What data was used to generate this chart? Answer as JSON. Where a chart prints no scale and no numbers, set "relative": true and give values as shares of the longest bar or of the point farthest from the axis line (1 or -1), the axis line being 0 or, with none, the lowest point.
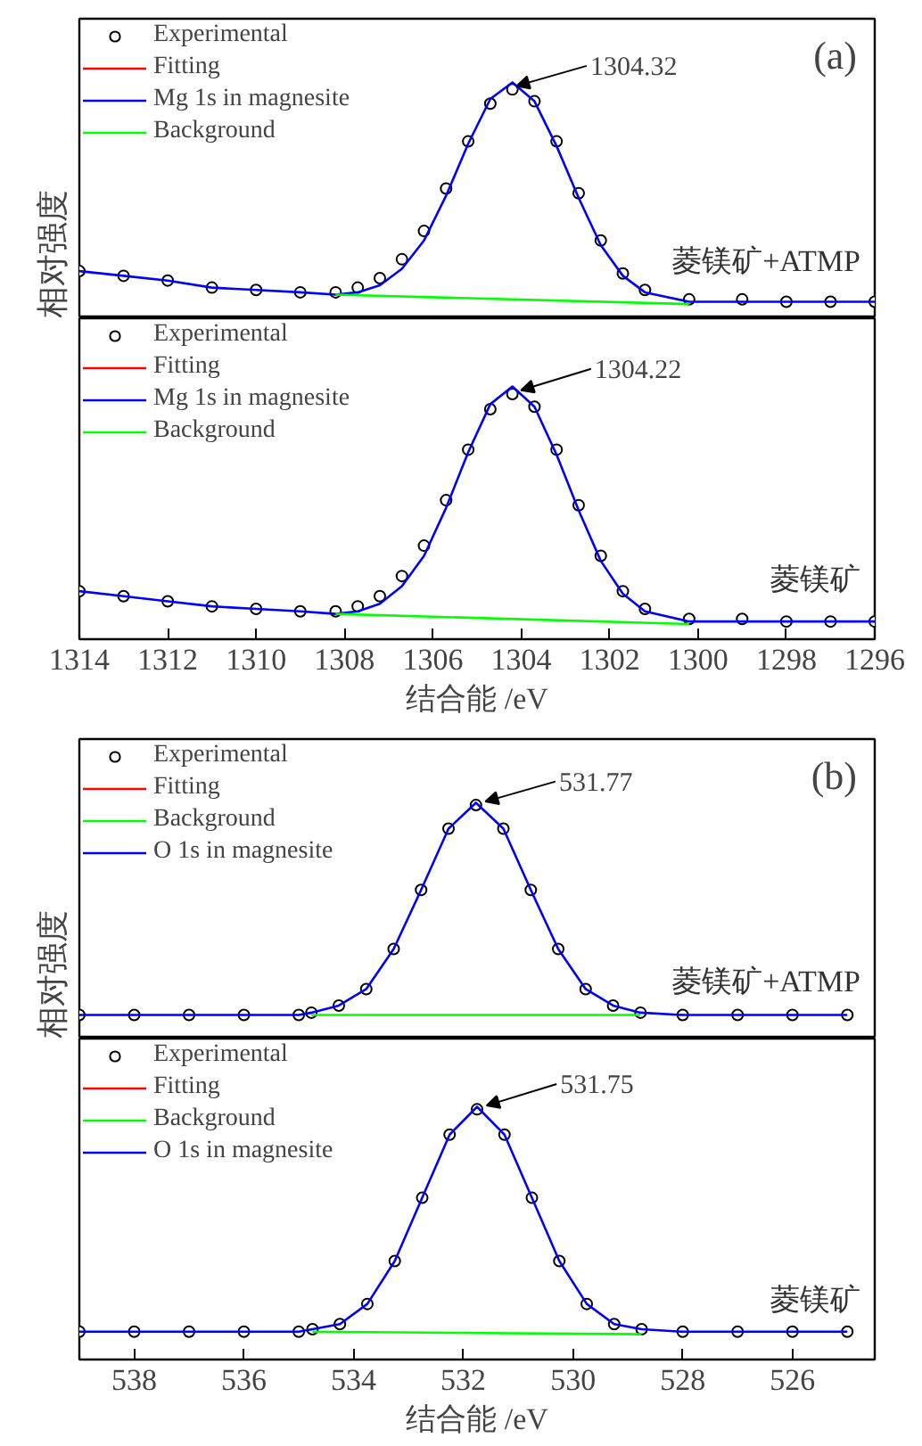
{
  "chart_data": [
    {
      "type": "line",
      "relative": true,
      "ylabel": "相对强度",
      "xlim": [
        1314,
        1296
      ],
      "xticks": [
        1314,
        1312,
        1310,
        1308,
        1306,
        1304,
        1302,
        1300,
        1298,
        1296
      ],
      "tick_labels": false,
      "legend": "top left",
      "grid": false,
      "annotations": [
        {
          "text": "1304.32",
          "x": 1304.32,
          "y": 0.97
        },
        "(a)",
        "菱镁矿+ATMP"
      ],
      "x": [
        1314,
        1313,
        1312,
        1311,
        1310,
        1309,
        1308.2,
        1307.7,
        1307.2,
        1306.7,
        1306.2,
        1305.7,
        1305.2,
        1304.7,
        1304.2,
        1303.7,
        1303.2,
        1302.7,
        1302.2,
        1301.7,
        1301.2,
        1300.2,
        1299,
        1298,
        1297,
        1296
      ],
      "series": [
        {
          "name": "Experimental",
          "type": "scatter",
          "marker": "circle",
          "color": "#000000",
          "values": [
            0.2,
            0.18,
            0.16,
            0.13,
            0.12,
            0.11,
            0.11,
            0.13,
            0.17,
            0.25,
            0.37,
            0.55,
            0.75,
            0.91,
            0.97,
            0.92,
            0.75,
            0.53,
            0.33,
            0.19,
            0.12,
            0.08,
            0.08,
            0.07,
            0.07,
            0.07
          ]
        },
        {
          "name": "Fitting",
          "color": "#ff0000",
          "values": [
            null,
            null,
            null,
            null,
            null,
            null,
            null,
            null,
            null,
            null,
            null,
            null,
            null,
            null,
            null,
            null,
            null,
            null,
            null,
            null,
            null,
            null,
            null,
            null,
            null,
            null
          ]
        },
        {
          "name": "Mg 1s in magnesite",
          "color": "#0000ff",
          "values": [
            0.2,
            0.18,
            0.16,
            0.13,
            0.12,
            0.11,
            0.1,
            0.11,
            0.14,
            0.21,
            0.33,
            0.52,
            0.74,
            0.93,
            1.0,
            0.92,
            0.73,
            0.51,
            0.31,
            0.18,
            0.11,
            0.07,
            0.07,
            0.07,
            0.07,
            0.07
          ]
        },
        {
          "name": "Background",
          "color": "#00ff00",
          "x": [
            1308.2,
            1300.2
          ],
          "values": [
            0.1,
            0.06
          ]
        }
      ]
    },
    {
      "type": "line",
      "relative": true,
      "xlabel": "结合能 /eV",
      "xlim": [
        1314,
        1296
      ],
      "xticks": [
        1314,
        1312,
        1310,
        1308,
        1306,
        1304,
        1302,
        1300,
        1298,
        1296
      ],
      "tick_labels": "x",
      "legend": "top left",
      "grid": false,
      "annotations": [
        {
          "text": "1304.22",
          "x": 1304.22,
          "y": 0.97
        },
        "菱镁矿"
      ],
      "x": [
        1314,
        1313,
        1312,
        1311,
        1310,
        1309,
        1308.2,
        1307.7,
        1307.2,
        1306.7,
        1306.2,
        1305.7,
        1305.2,
        1304.7,
        1304.2,
        1303.7,
        1303.2,
        1302.7,
        1302.2,
        1301.7,
        1301.2,
        1300.2,
        1299,
        1298,
        1297,
        1296
      ],
      "series": [
        {
          "name": "Experimental",
          "type": "scatter",
          "marker": "circle",
          "color": "#000000",
          "values": [
            0.19,
            0.17,
            0.15,
            0.13,
            0.12,
            0.11,
            0.11,
            0.13,
            0.17,
            0.25,
            0.37,
            0.55,
            0.75,
            0.91,
            0.97,
            0.92,
            0.75,
            0.53,
            0.33,
            0.19,
            0.12,
            0.08,
            0.08,
            0.07,
            0.07,
            0.07
          ]
        },
        {
          "name": "Fitting",
          "color": "#ff0000",
          "values": [
            null,
            null,
            null,
            null,
            null,
            null,
            null,
            null,
            null,
            null,
            null,
            null,
            null,
            null,
            null,
            null,
            null,
            null,
            null,
            null,
            null,
            null,
            null,
            null,
            null,
            null
          ]
        },
        {
          "name": "Mg 1s in magnesite",
          "color": "#0000ff",
          "values": [
            0.19,
            0.17,
            0.15,
            0.13,
            0.12,
            0.11,
            0.1,
            0.11,
            0.14,
            0.21,
            0.33,
            0.52,
            0.74,
            0.93,
            1.0,
            0.92,
            0.73,
            0.51,
            0.31,
            0.18,
            0.11,
            0.07,
            0.07,
            0.07,
            0.07,
            0.07
          ]
        },
        {
          "name": "Background",
          "color": "#00ff00",
          "x": [
            1308.2,
            1300.2
          ],
          "values": [
            0.1,
            0.06
          ]
        }
      ]
    },
    {
      "type": "line",
      "relative": true,
      "ylabel": "相对强度",
      "xlim": [
        539,
        524.5
      ],
      "xticks": [
        538,
        536,
        534,
        532,
        530,
        528,
        526
      ],
      "tick_labels": false,
      "legend": "top left",
      "grid": false,
      "annotations": [
        {
          "text": "531.77",
          "x": 531.77,
          "y": 0.99
        },
        "(b)",
        "菱镁矿+ATMP"
      ],
      "x": [
        539,
        538,
        537,
        536,
        535,
        534.77,
        534.27,
        533.77,
        533.27,
        532.77,
        532.27,
        531.77,
        531.27,
        530.77,
        530.27,
        529.77,
        529.27,
        528.77,
        528,
        527,
        526,
        525
      ],
      "series": [
        {
          "name": "Experimental",
          "type": "scatter",
          "marker": "circle",
          "color": "#000000",
          "values": [
            0.1,
            0.1,
            0.1,
            0.1,
            0.1,
            0.11,
            0.14,
            0.21,
            0.38,
            0.63,
            0.89,
            0.99,
            0.89,
            0.63,
            0.38,
            0.21,
            0.14,
            0.11,
            0.1,
            0.1,
            0.1,
            0.1
          ]
        },
        {
          "name": "Fitting",
          "color": "#ff0000",
          "values": [
            null,
            null,
            null,
            null,
            null,
            null,
            null,
            null,
            null,
            null,
            null,
            null,
            null,
            null,
            null,
            null,
            null,
            null,
            null,
            null,
            null,
            null
          ]
        },
        {
          "name": "Background",
          "color": "#00ff00",
          "x": [
            534.77,
            528.77
          ],
          "values": [
            0.1,
            0.1
          ]
        },
        {
          "name": "O 1s in magnesite",
          "color": "#0000ff",
          "values": [
            0.1,
            0.1,
            0.1,
            0.1,
            0.1,
            0.11,
            0.14,
            0.21,
            0.38,
            0.63,
            0.89,
            1.0,
            0.89,
            0.63,
            0.38,
            0.21,
            0.14,
            0.11,
            0.1,
            0.1,
            0.1,
            0.1
          ]
        }
      ]
    },
    {
      "type": "line",
      "relative": true,
      "xlabel": "结合能 /eV",
      "xlim": [
        539,
        524.5
      ],
      "xticks": [
        538,
        536,
        534,
        532,
        530,
        528,
        526
      ],
      "tick_labels": "x",
      "legend": "top left",
      "grid": false,
      "annotations": [
        {
          "text": "531.75",
          "x": 531.75,
          "y": 0.99
        },
        "菱镁矿"
      ],
      "x": [
        539,
        538,
        537,
        536,
        535,
        534.75,
        534.25,
        533.75,
        533.25,
        532.75,
        532.25,
        531.75,
        531.25,
        530.75,
        530.25,
        529.75,
        529.25,
        528.75,
        528,
        527,
        526,
        525
      ],
      "series": [
        {
          "name": "Experimental",
          "type": "scatter",
          "marker": "circle",
          "color": "#000000",
          "values": [
            0.11,
            0.11,
            0.11,
            0.11,
            0.11,
            0.12,
            0.14,
            0.22,
            0.39,
            0.64,
            0.89,
            0.99,
            0.89,
            0.64,
            0.39,
            0.22,
            0.14,
            0.12,
            0.11,
            0.11,
            0.11,
            0.11
          ]
        },
        {
          "name": "Fitting",
          "color": "#ff0000",
          "values": [
            null,
            null,
            null,
            null,
            null,
            null,
            null,
            null,
            null,
            null,
            null,
            null,
            null,
            null,
            null,
            null,
            null,
            null,
            null,
            null,
            null,
            null
          ]
        },
        {
          "name": "Background",
          "color": "#00ff00",
          "x": [
            534.75,
            528.75
          ],
          "values": [
            0.11,
            0.1
          ]
        },
        {
          "name": "O 1s in magnesite",
          "color": "#0000ff",
          "values": [
            0.11,
            0.11,
            0.11,
            0.11,
            0.11,
            0.12,
            0.14,
            0.22,
            0.39,
            0.64,
            0.89,
            1.0,
            0.89,
            0.64,
            0.39,
            0.22,
            0.14,
            0.12,
            0.11,
            0.11,
            0.11,
            0.11
          ]
        }
      ]
    }
  ]
}
